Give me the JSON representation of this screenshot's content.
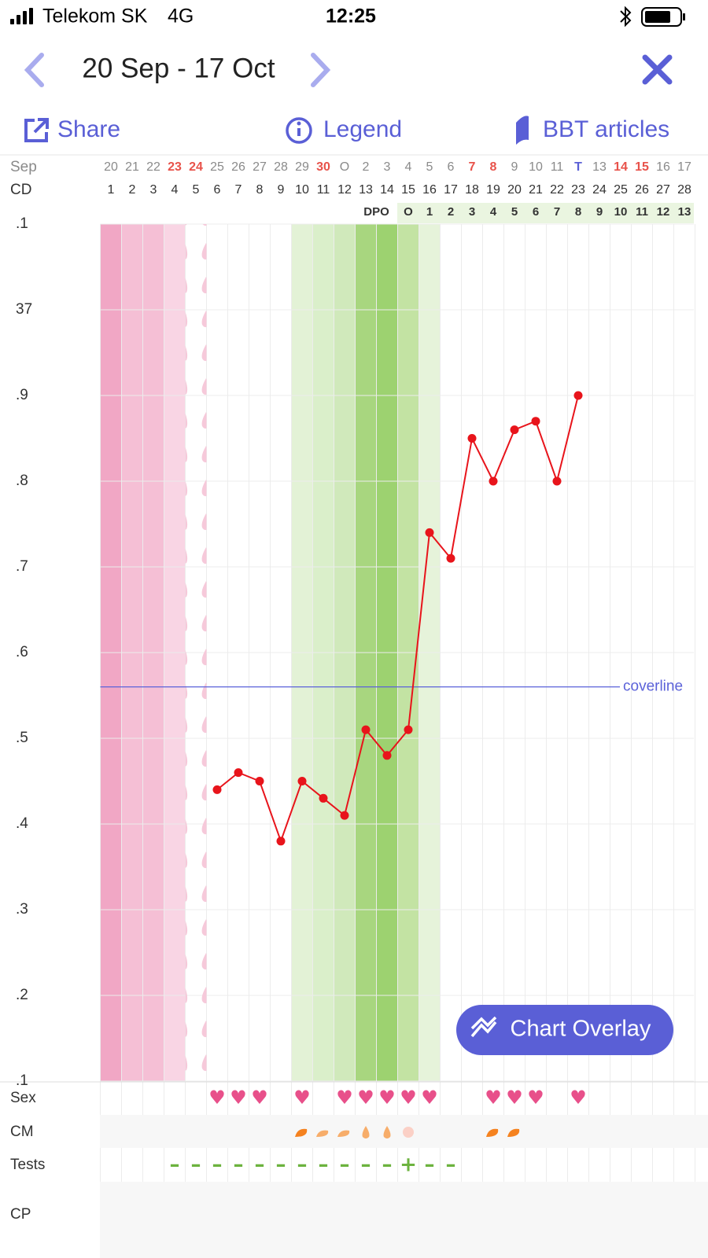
{
  "status_bar": {
    "carrier": "Telekom SK",
    "network": "4G",
    "time": "12:25"
  },
  "header": {
    "title": "20 Sep - 17 Oct"
  },
  "toolbar": {
    "share": "Share",
    "legend": "Legend",
    "articles": "BBT articles"
  },
  "chart_data": {
    "type": "line",
    "month_label": "Sep",
    "cd_label": "CD",
    "dates": [
      "20",
      "21",
      "22",
      "23",
      "24",
      "25",
      "26",
      "27",
      "28",
      "29",
      "30",
      "O",
      "2",
      "3",
      "4",
      "5",
      "6",
      "7",
      "8",
      "9",
      "10",
      "11",
      "T",
      "13",
      "14",
      "15",
      "16",
      "17"
    ],
    "date_colors": [
      "#8a8a8a",
      "#8a8a8a",
      "#8a8a8a",
      "#e8524a",
      "#e8524a",
      "#8a8a8a",
      "#8a8a8a",
      "#8a8a8a",
      "#8a8a8a",
      "#8a8a8a",
      "#e8524a",
      "#8a8a8a",
      "#8a8a8a",
      "#8a8a8a",
      "#8a8a8a",
      "#8a8a8a",
      "#8a8a8a",
      "#e8524a",
      "#e8524a",
      "#8a8a8a",
      "#8a8a8a",
      "#8a8a8a",
      "#5a5fd6",
      "#8a8a8a",
      "#e8524a",
      "#e8524a",
      "#8a8a8a",
      "#8a8a8a"
    ],
    "categories": [
      1,
      2,
      3,
      4,
      5,
      6,
      7,
      8,
      9,
      10,
      11,
      12,
      13,
      14,
      15,
      16,
      17,
      18,
      19,
      20,
      21,
      22,
      23,
      24,
      25,
      26,
      27,
      28
    ],
    "dpo_label": "DPO",
    "dpo": [
      null,
      null,
      null,
      null,
      null,
      null,
      null,
      null,
      null,
      null,
      null,
      null,
      null,
      null,
      "O",
      1,
      2,
      3,
      4,
      5,
      6,
      7,
      8,
      9,
      10,
      11,
      12,
      13
    ],
    "values": [
      null,
      null,
      null,
      null,
      null,
      36.44,
      36.46,
      36.45,
      36.38,
      36.45,
      36.43,
      36.41,
      36.51,
      36.48,
      36.51,
      36.74,
      36.71,
      36.85,
      36.8,
      36.86,
      36.87,
      36.8,
      36.9,
      null,
      null,
      null,
      null,
      null
    ],
    "color": "#e8141b",
    "ylim": [
      36.1,
      37.1
    ],
    "yticks": [
      {
        "value": 37.1,
        "label": ".1"
      },
      37,
      {
        "value": 36.9,
        "label": ".9"
      },
      {
        "value": 36.8,
        "label": ".8"
      },
      {
        "value": 36.7,
        "label": ".7"
      },
      {
        "value": 36.6,
        "label": ".6"
      },
      {
        "value": 36.5,
        "label": ".5"
      },
      {
        "value": 36.4,
        "label": ".4"
      },
      {
        "value": 36.3,
        "label": ".3"
      },
      {
        "value": 36.2,
        "label": ".2"
      },
      {
        "value": 36.1,
        "label": ".1"
      }
    ],
    "grid": true,
    "column_fills": [
      "#f1a7c5",
      "#f5bfd5",
      "#f5bfd5",
      "#f9d5e4",
      null,
      null,
      null,
      null,
      null,
      "#e3f2d6",
      "#daefca",
      "#d0e9bb",
      "#a8d67f",
      "#9dd270",
      "#c3e3a3",
      "#e6f3da",
      null,
      null,
      null,
      null,
      null,
      null,
      null,
      null,
      null,
      null,
      null,
      null
    ],
    "coverline": {
      "value": 36.56,
      "label": "coverline",
      "color": "#5b62d9"
    },
    "rows": {
      "sex": {
        "label": "Sex",
        "color": "#e8508a",
        "marks": [
          null,
          null,
          null,
          null,
          null,
          "♥",
          "♥",
          "♥",
          null,
          "♥",
          null,
          "♥",
          "♥",
          "♥",
          "♥",
          "♥",
          null,
          null,
          "♥",
          "♥",
          "♥",
          null,
          "♥",
          null,
          null,
          null,
          null,
          null
        ]
      },
      "cm": {
        "label": "CM"
      },
      "tests": {
        "label": "Tests",
        "color": "#6cb33f",
        "marks": [
          null,
          null,
          null,
          "–",
          "–",
          "–",
          "–",
          "–",
          "–",
          "–",
          "–",
          "–",
          "–",
          "–",
          "+",
          "–",
          "–",
          null,
          null,
          null,
          null,
          null,
          null,
          null,
          null,
          null,
          null,
          null
        ]
      },
      "cp": {
        "label": "CP"
      }
    }
  },
  "button": {
    "label": "Chart Overlay"
  }
}
